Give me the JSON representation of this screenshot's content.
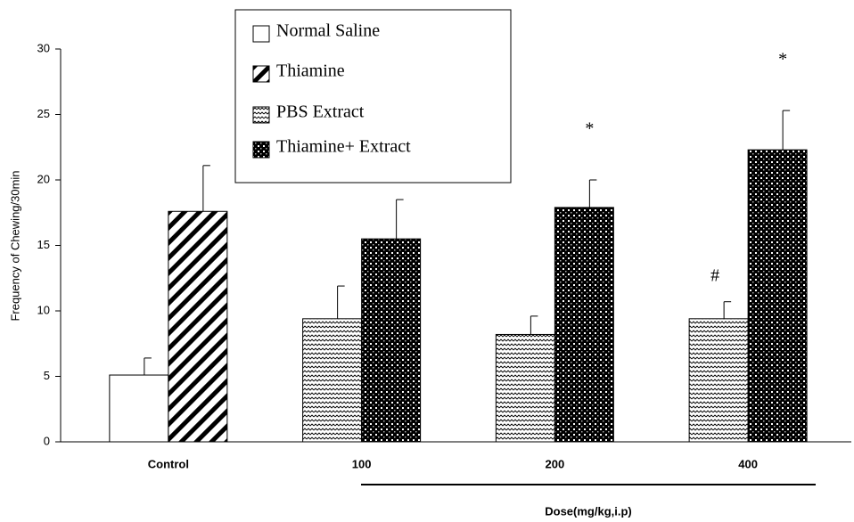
{
  "chart_data": {
    "type": "bar",
    "categories": [
      "Control",
      "100",
      "200",
      "400"
    ],
    "x_label": "Dose(mg/kg,i.p)",
    "y_label": "Frequency of Chewing/30min",
    "series": [
      {
        "name": "Normal Saline",
        "color": "#ffffff",
        "pattern": "none",
        "values": [
          5.1,
          null,
          null,
          null
        ],
        "errors": [
          1.3,
          null,
          null,
          null
        ]
      },
      {
        "name": "Thiamine",
        "color": "#000000",
        "pattern": "diagonal",
        "values": [
          17.6,
          null,
          null,
          null
        ],
        "errors": [
          3.5,
          null,
          null,
          null
        ]
      },
      {
        "name": "PBS Extract",
        "color": "#000000",
        "pattern": "wave",
        "values": [
          null,
          9.4,
          8.2,
          9.4
        ],
        "errors": [
          null,
          2.5,
          1.4,
          1.3
        ]
      },
      {
        "name": "Thiamine+ Extract",
        "color": "#000000",
        "pattern": "check",
        "values": [
          null,
          15.5,
          17.9,
          22.3
        ],
        "errors": [
          null,
          3.0,
          2.1,
          3.0
        ]
      }
    ],
    "annotations": [
      {
        "text": "*",
        "category": "200",
        "series": "Thiamine+ Extract"
      },
      {
        "text": "*",
        "category": "400",
        "series": "Thiamine+ Extract"
      },
      {
        "text": "#",
        "category": "400",
        "series": "PBS Extract"
      }
    ],
    "ylim": [
      0,
      30
    ],
    "yticks": [
      0,
      5,
      10,
      15,
      20,
      25,
      30
    ],
    "grid": false,
    "legend": "top"
  }
}
